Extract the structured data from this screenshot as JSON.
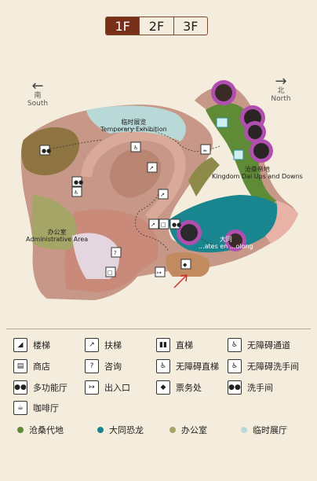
{
  "floor_tabs": [
    {
      "label": "1F",
      "active": true
    },
    {
      "label": "2F",
      "active": false
    },
    {
      "label": "3F",
      "active": false
    }
  ],
  "directions": {
    "south": {
      "cn": "南",
      "en": "South"
    },
    "north": {
      "cn": "北",
      "en": "North"
    }
  },
  "map_labels": {
    "temporary": {
      "cn": "临时展览",
      "en": "Temporary Exhibition"
    },
    "kingdom": {
      "cn": "沧桑帝地",
      "en": "Kingdom Dai Ups and Downs"
    },
    "admin": {
      "cn": "办公室",
      "en": "Administrative Area"
    },
    "datong": {
      "cn": "大同",
      "en": "...ates en ...olong"
    }
  },
  "legend": [
    {
      "icon": "stairs-icon",
      "label": "楼梯"
    },
    {
      "icon": "escalator-icon",
      "label": "扶梯"
    },
    {
      "icon": "elevator-icon",
      "label": "直梯"
    },
    {
      "icon": "accessible-passage-icon",
      "label": "无障碍通道"
    },
    {
      "icon": "shop-icon",
      "label": "商店"
    },
    {
      "icon": "info-icon",
      "label": "咨询"
    },
    {
      "icon": "accessible-elevator-icon",
      "label": "无障碍直梯"
    },
    {
      "icon": "accessible-restroom-icon",
      "label": "无障碍洗手间"
    },
    {
      "icon": "multi-function-hall-icon",
      "label": "多功能厅"
    },
    {
      "icon": "entrance-exit-icon",
      "label": "出入口"
    },
    {
      "icon": "ticket-office-icon",
      "label": "票务处"
    },
    {
      "icon": "restroom-icon",
      "label": "洗手间"
    },
    {
      "icon": "cafe-icon",
      "label": "咖啡厅"
    }
  ],
  "zones": [
    {
      "label": "沧桑代地",
      "color": "#5f8a36"
    },
    {
      "label": "大同恐龙",
      "color": "#19868f"
    },
    {
      "label": "办公室",
      "color": "#a5a567"
    },
    {
      "label": "临时展厅",
      "color": "#b9d9d9"
    }
  ],
  "colors": {
    "building": "#c79887",
    "corridor": "#c98a7a",
    "ticket_zone": "#c28a5f",
    "admin_zone": "#a5a567",
    "olive_zone": "#8d7440",
    "lilac_zone": "#e4d6df",
    "temporary_zone": "#b9d9d9",
    "green_zone": "#5f8a36",
    "teal_zone": "#19868f",
    "highlight": "#b14fb0",
    "active_tab": "#7a2f1a",
    "background": "#f4ecdc"
  }
}
